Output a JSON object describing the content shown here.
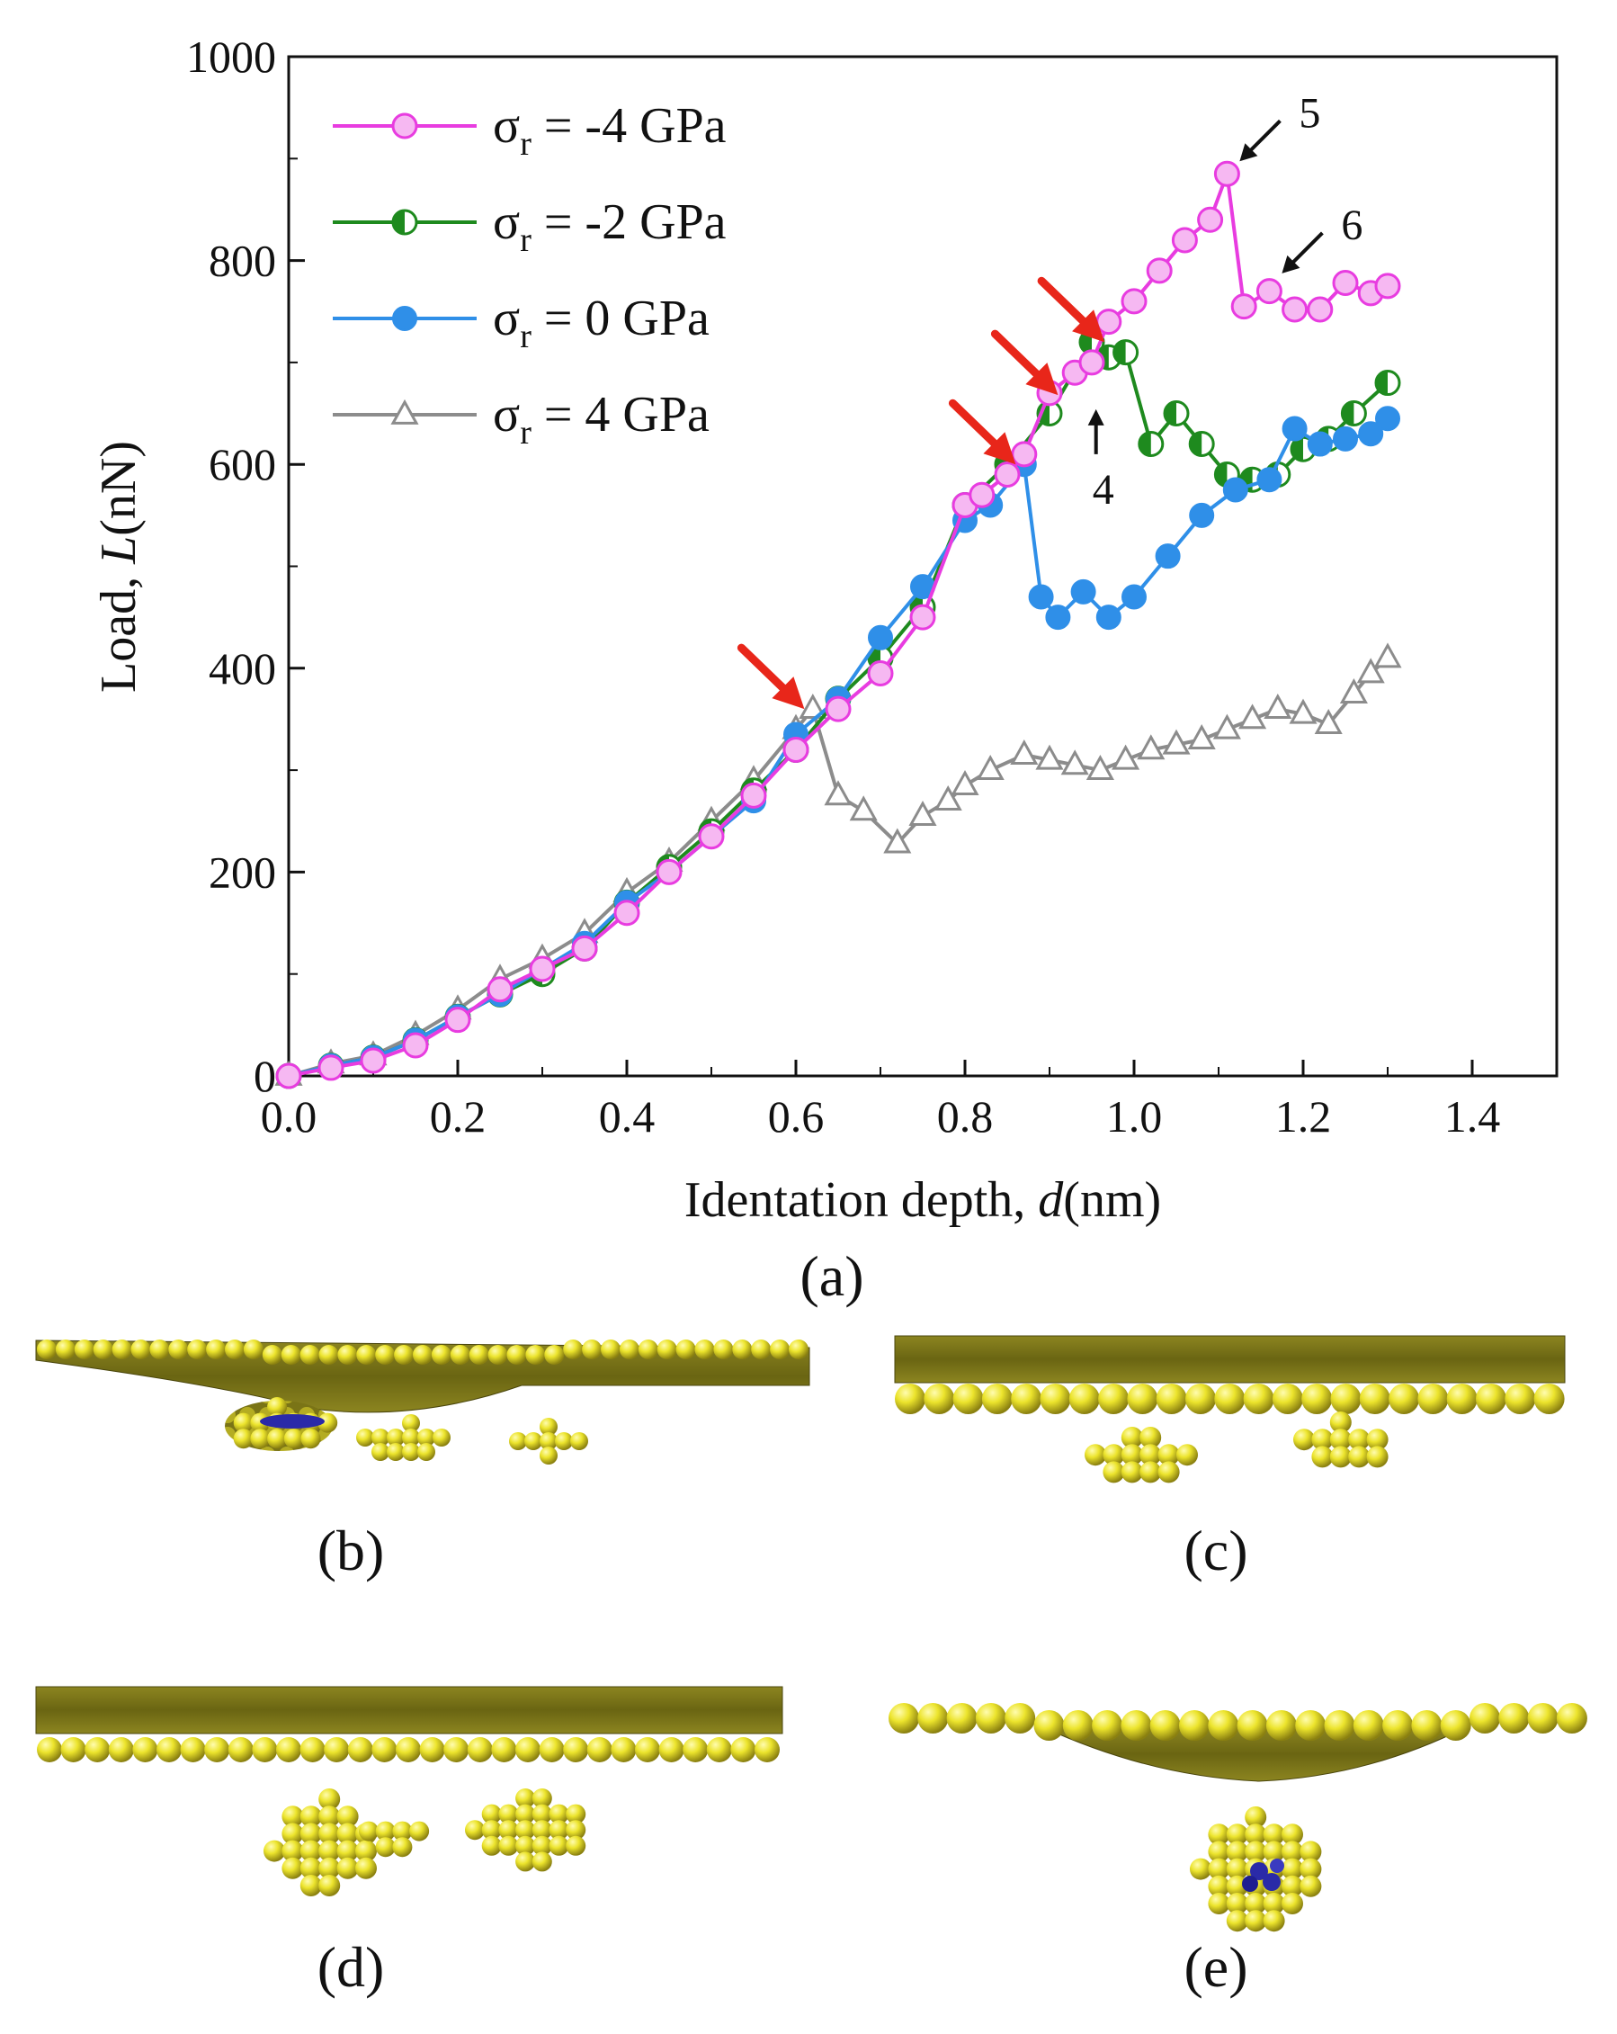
{
  "chart_data": {
    "type": "line",
    "title": "",
    "xlabel": "Identation depth, d(nm)",
    "xlabel_prefix": "Identation depth, ",
    "xlabel_var": "d",
    "xlabel_unit": "(nm)",
    "ylabel": "Load, L(nN)",
    "ylabel_prefix": "Load, ",
    "ylabel_var": "L",
    "ylabel_unit": "(nN)",
    "xlim": [
      0,
      1.5
    ],
    "ylim": [
      0,
      1000
    ],
    "xticks": [
      "0.0",
      "0.2",
      "0.4",
      "0.6",
      "0.8",
      "1.0",
      "1.2",
      "1.4"
    ],
    "yticks": [
      "0",
      "200",
      "400",
      "600",
      "800",
      "1000"
    ],
    "legend_position": "top-left",
    "series": [
      {
        "name": "σr = -4 GPa",
        "legend_symbol": "σ",
        "legend_sub": "r",
        "legend_value": " = -4  GPa",
        "color": "#e83ce0",
        "marker": "circle-open-shade",
        "x": [
          0.0,
          0.05,
          0.1,
          0.15,
          0.2,
          0.25,
          0.3,
          0.35,
          0.4,
          0.45,
          0.5,
          0.55,
          0.6,
          0.65,
          0.7,
          0.75,
          0.8,
          0.82,
          0.85,
          0.87,
          0.9,
          0.93,
          0.95,
          0.97,
          1.0,
          1.03,
          1.06,
          1.09,
          1.11,
          1.13,
          1.16,
          1.19,
          1.22,
          1.25,
          1.28,
          1.3
        ],
        "y": [
          0,
          8,
          15,
          30,
          55,
          85,
          105,
          125,
          160,
          200,
          235,
          275,
          320,
          360,
          395,
          450,
          560,
          570,
          590,
          610,
          670,
          690,
          700,
          740,
          760,
          790,
          820,
          840,
          885,
          755,
          770,
          752,
          752,
          778,
          768,
          775
        ]
      },
      {
        "name": "σr = -2 GPa",
        "legend_symbol": "σ",
        "legend_sub": "r",
        "legend_value": " = -2  GPa",
        "color": "#1e8a1e",
        "marker": "circle-half",
        "x": [
          0.0,
          0.05,
          0.1,
          0.15,
          0.2,
          0.25,
          0.3,
          0.35,
          0.4,
          0.45,
          0.5,
          0.55,
          0.6,
          0.65,
          0.7,
          0.75,
          0.8,
          0.85,
          0.9,
          0.95,
          0.97,
          0.99,
          1.02,
          1.05,
          1.08,
          1.11,
          1.14,
          1.17,
          1.2,
          1.23,
          1.26,
          1.3
        ],
        "y": [
          0,
          10,
          18,
          35,
          58,
          80,
          100,
          125,
          170,
          205,
          240,
          280,
          320,
          370,
          410,
          460,
          560,
          600,
          650,
          720,
          705,
          710,
          620,
          650,
          620,
          590,
          585,
          590,
          615,
          625,
          650,
          680
        ]
      },
      {
        "name": "σr = 0 GPa",
        "legend_symbol": "σ",
        "legend_sub": "r",
        "legend_value": " = 0  GPa",
        "color": "#2f8fe8",
        "marker": "circle-filled",
        "x": [
          0.0,
          0.05,
          0.1,
          0.15,
          0.2,
          0.25,
          0.3,
          0.35,
          0.4,
          0.45,
          0.5,
          0.55,
          0.6,
          0.65,
          0.7,
          0.75,
          0.8,
          0.83,
          0.87,
          0.89,
          0.91,
          0.94,
          0.97,
          1.0,
          1.04,
          1.08,
          1.12,
          1.16,
          1.19,
          1.22,
          1.25,
          1.28,
          1.3
        ],
        "y": [
          0,
          10,
          18,
          35,
          58,
          80,
          105,
          130,
          170,
          200,
          235,
          270,
          335,
          370,
          430,
          480,
          545,
          560,
          600,
          470,
          450,
          475,
          450,
          470,
          510,
          550,
          575,
          585,
          635,
          620,
          625,
          630,
          645
        ]
      },
      {
        "name": "σr = 4 GPa",
        "legend_symbol": "σ",
        "legend_sub": "r",
        "legend_value": " = 4  GPa",
        "color": "#8c8c8c",
        "marker": "triangle-open",
        "x": [
          0.0,
          0.05,
          0.1,
          0.15,
          0.2,
          0.25,
          0.3,
          0.35,
          0.4,
          0.45,
          0.5,
          0.55,
          0.6,
          0.62,
          0.65,
          0.68,
          0.72,
          0.75,
          0.78,
          0.8,
          0.83,
          0.87,
          0.9,
          0.93,
          0.96,
          0.99,
          1.02,
          1.05,
          1.08,
          1.11,
          1.14,
          1.17,
          1.2,
          1.23,
          1.26,
          1.28,
          1.3
        ],
        "y": [
          0,
          12,
          20,
          40,
          65,
          95,
          115,
          140,
          180,
          210,
          250,
          290,
          340,
          360,
          275,
          260,
          228,
          255,
          270,
          285,
          300,
          315,
          310,
          305,
          300,
          310,
          320,
          325,
          330,
          340,
          350,
          360,
          355,
          345,
          375,
          395,
          410
        ]
      }
    ],
    "annotations": [
      {
        "type": "red-arrow",
        "x": 0.61,
        "y": 360,
        "text": ""
      },
      {
        "type": "red-arrow",
        "x": 0.86,
        "y": 600,
        "text": ""
      },
      {
        "type": "red-arrow",
        "x": 0.91,
        "y": 668,
        "text": ""
      },
      {
        "type": "red-arrow",
        "x": 0.965,
        "y": 720,
        "text": ""
      },
      {
        "type": "black-arrow-up",
        "x": 0.955,
        "y": 670,
        "text": "4"
      },
      {
        "type": "black-arrow-down",
        "x": 1.11,
        "y": 885,
        "text": "5"
      },
      {
        "type": "black-arrow-down",
        "x": 1.16,
        "y": 775,
        "text": "6"
      }
    ]
  },
  "panels": {
    "a": "(a)",
    "b": "(b)",
    "c": "(c)",
    "d": "(d)",
    "e": "(e)"
  },
  "colors": {
    "atom_yellow": "#e8e02a",
    "atom_dark": "#6e6a12",
    "atom_highlight": "#fffca0",
    "defect_blue": "#2a2aa8",
    "red_arrow": "#e8261a"
  }
}
